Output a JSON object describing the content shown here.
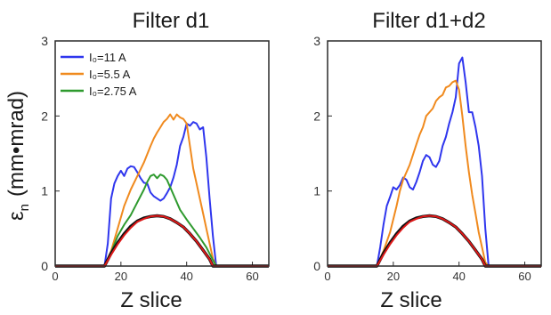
{
  "shared_ylabel": {
    "symbol": "ε",
    "sub": "n",
    "units": "(mm•mrad)"
  },
  "chart_data": [
    {
      "type": "line",
      "title": "Filter d1",
      "xlabel": "Z slice",
      "ylabel": "",
      "xlim": [
        0,
        65
      ],
      "ylim": [
        0,
        3
      ],
      "xticks": [
        0,
        20,
        40,
        60
      ],
      "yticks": [
        0,
        1,
        2,
        3
      ],
      "grid": false,
      "legend": "top-left",
      "series": [
        {
          "name": "I₀=11 A",
          "color": "#2f36ee",
          "points": [
            [
              0,
              0
            ],
            [
              15,
              0
            ],
            [
              16,
              0.3
            ],
            [
              17,
              0.9
            ],
            [
              18,
              1.1
            ],
            [
              19,
              1.2
            ],
            [
              20,
              1.27
            ],
            [
              21,
              1.2
            ],
            [
              22,
              1.3
            ],
            [
              23,
              1.33
            ],
            [
              24,
              1.32
            ],
            [
              25,
              1.25
            ],
            [
              26,
              1.17
            ],
            [
              27,
              1.11
            ],
            [
              28,
              1.1
            ],
            [
              29,
              0.98
            ],
            [
              30,
              0.93
            ],
            [
              31,
              0.9
            ],
            [
              32,
              0.87
            ],
            [
              33,
              0.9
            ],
            [
              34,
              0.97
            ],
            [
              35,
              1.05
            ],
            [
              36,
              1.18
            ],
            [
              37,
              1.35
            ],
            [
              38,
              1.6
            ],
            [
              39,
              1.72
            ],
            [
              40,
              1.9
            ],
            [
              41,
              1.87
            ],
            [
              42,
              1.92
            ],
            [
              43,
              1.9
            ],
            [
              44,
              1.82
            ],
            [
              45,
              1.85
            ],
            [
              46,
              1.45
            ],
            [
              47,
              0.9
            ],
            [
              48,
              0.4
            ],
            [
              49,
              0
            ],
            [
              65,
              0
            ]
          ]
        },
        {
          "name": "I₀=5.5 A",
          "color": "#f08a1e",
          "points": [
            [
              0,
              0
            ],
            [
              15,
              0
            ],
            [
              17,
              0.2
            ],
            [
              19,
              0.5
            ],
            [
              21,
              0.8
            ],
            [
              23,
              1.02
            ],
            [
              25,
              1.2
            ],
            [
              27,
              1.38
            ],
            [
              29,
              1.6
            ],
            [
              30,
              1.7
            ],
            [
              31,
              1.78
            ],
            [
              32,
              1.85
            ],
            [
              33,
              1.92
            ],
            [
              34,
              1.96
            ],
            [
              35,
              2.02
            ],
            [
              36,
              1.95
            ],
            [
              37,
              2.02
            ],
            [
              38,
              1.98
            ],
            [
              39,
              1.96
            ],
            [
              40,
              1.9
            ],
            [
              41,
              1.6
            ],
            [
              42,
              1.3
            ],
            [
              43,
              1.1
            ],
            [
              44,
              0.9
            ],
            [
              45,
              0.7
            ],
            [
              46,
              0.5
            ],
            [
              47,
              0.3
            ],
            [
              48,
              0.1
            ],
            [
              49,
              0
            ],
            [
              65,
              0
            ]
          ]
        },
        {
          "name": "I₀=2.75 A",
          "color": "#2e9a2e",
          "points": [
            [
              0,
              0
            ],
            [
              15,
              0
            ],
            [
              17,
              0.18
            ],
            [
              19,
              0.4
            ],
            [
              21,
              0.55
            ],
            [
              23,
              0.68
            ],
            [
              25,
              0.85
            ],
            [
              27,
              1.02
            ],
            [
              28,
              1.12
            ],
            [
              29,
              1.2
            ],
            [
              30,
              1.22
            ],
            [
              31,
              1.17
            ],
            [
              32,
              1.22
            ],
            [
              33,
              1.2
            ],
            [
              34,
              1.15
            ],
            [
              35,
              1.05
            ],
            [
              36,
              0.95
            ],
            [
              38,
              0.75
            ],
            [
              40,
              0.62
            ],
            [
              42,
              0.5
            ],
            [
              44,
              0.38
            ],
            [
              46,
              0.25
            ],
            [
              48,
              0.08
            ],
            [
              49,
              0
            ],
            [
              65,
              0
            ]
          ]
        },
        {
          "name": "",
          "color": "#111111",
          "points": [
            [
              0,
              0
            ],
            [
              15,
              0
            ],
            [
              17,
              0.17
            ],
            [
              19,
              0.31
            ],
            [
              21,
              0.43
            ],
            [
              23,
              0.53
            ],
            [
              25,
              0.6
            ],
            [
              27,
              0.64
            ],
            [
              29,
              0.66
            ],
            [
              31,
              0.67
            ],
            [
              33,
              0.66
            ],
            [
              35,
              0.63
            ],
            [
              37,
              0.58
            ],
            [
              39,
              0.52
            ],
            [
              41,
              0.43
            ],
            [
              43,
              0.33
            ],
            [
              45,
              0.21
            ],
            [
              47,
              0.09
            ],
            [
              48,
              0
            ],
            [
              65,
              0
            ]
          ]
        },
        {
          "name": "",
          "color": "#e01818",
          "points": [
            [
              0,
              0
            ],
            [
              15,
              0
            ],
            [
              17,
              0.15
            ],
            [
              19,
              0.29
            ],
            [
              21,
              0.41
            ],
            [
              23,
              0.51
            ],
            [
              25,
              0.59
            ],
            [
              27,
              0.63
            ],
            [
              29,
              0.66
            ],
            [
              31,
              0.67
            ],
            [
              33,
              0.66
            ],
            [
              35,
              0.63
            ],
            [
              37,
              0.58
            ],
            [
              39,
              0.52
            ],
            [
              41,
              0.43
            ],
            [
              43,
              0.33
            ],
            [
              45,
              0.21
            ],
            [
              47,
              0.09
            ],
            [
              48,
              0
            ],
            [
              65,
              0
            ]
          ]
        }
      ]
    },
    {
      "type": "line",
      "title": "Filter d1+d2",
      "xlabel": "Z slice",
      "ylabel": "",
      "xlim": [
        0,
        65
      ],
      "ylim": [
        0,
        3
      ],
      "xticks": [
        0,
        20,
        40,
        60
      ],
      "yticks": [
        0,
        1,
        2,
        3
      ],
      "grid": false,
      "legend": "none",
      "series": [
        {
          "name": "",
          "color": "#2f36ee",
          "points": [
            [
              0,
              0
            ],
            [
              15,
              0
            ],
            [
              16,
              0.25
            ],
            [
              17,
              0.55
            ],
            [
              18,
              0.8
            ],
            [
              19,
              0.92
            ],
            [
              20,
              1.05
            ],
            [
              21,
              1.02
            ],
            [
              22,
              1.08
            ],
            [
              23,
              1.18
            ],
            [
              24,
              1.15
            ],
            [
              25,
              1.05
            ],
            [
              26,
              1.02
            ],
            [
              27,
              1.12
            ],
            [
              28,
              1.25
            ],
            [
              29,
              1.4
            ],
            [
              30,
              1.48
            ],
            [
              31,
              1.45
            ],
            [
              32,
              1.35
            ],
            [
              33,
              1.32
            ],
            [
              34,
              1.4
            ],
            [
              35,
              1.6
            ],
            [
              36,
              1.72
            ],
            [
              37,
              1.9
            ],
            [
              38,
              2.05
            ],
            [
              39,
              2.25
            ],
            [
              40,
              2.7
            ],
            [
              41,
              2.78
            ],
            [
              42,
              2.45
            ],
            [
              43,
              2.05
            ],
            [
              44,
              2.05
            ],
            [
              45,
              1.85
            ],
            [
              46,
              1.6
            ],
            [
              47,
              1.2
            ],
            [
              48,
              0.5
            ],
            [
              49,
              0
            ],
            [
              65,
              0
            ]
          ]
        },
        {
          "name": "",
          "color": "#f08a1e",
          "points": [
            [
              0,
              0
            ],
            [
              15,
              0
            ],
            [
              17,
              0.2
            ],
            [
              19,
              0.45
            ],
            [
              21,
              0.8
            ],
            [
              22,
              1.0
            ],
            [
              23,
              1.15
            ],
            [
              25,
              1.35
            ],
            [
              27,
              1.62
            ],
            [
              28,
              1.75
            ],
            [
              29,
              1.85
            ],
            [
              30,
              2.0
            ],
            [
              31,
              2.05
            ],
            [
              32,
              2.1
            ],
            [
              33,
              2.2
            ],
            [
              34,
              2.25
            ],
            [
              35,
              2.28
            ],
            [
              36,
              2.38
            ],
            [
              37,
              2.4
            ],
            [
              38,
              2.45
            ],
            [
              39,
              2.47
            ],
            [
              40,
              2.35
            ],
            [
              41,
              2.0
            ],
            [
              42,
              1.6
            ],
            [
              43,
              1.25
            ],
            [
              44,
              0.95
            ],
            [
              45,
              0.7
            ],
            [
              46,
              0.45
            ],
            [
              47,
              0.25
            ],
            [
              48,
              0.05
            ],
            [
              49,
              0
            ],
            [
              65,
              0
            ]
          ]
        },
        {
          "name": "",
          "color": "#111111",
          "points": [
            [
              0,
              0
            ],
            [
              15,
              0
            ],
            [
              17,
              0.17
            ],
            [
              19,
              0.31
            ],
            [
              21,
              0.43
            ],
            [
              23,
              0.53
            ],
            [
              25,
              0.6
            ],
            [
              27,
              0.64
            ],
            [
              29,
              0.66
            ],
            [
              31,
              0.67
            ],
            [
              33,
              0.66
            ],
            [
              35,
              0.63
            ],
            [
              37,
              0.58
            ],
            [
              39,
              0.52
            ],
            [
              41,
              0.43
            ],
            [
              43,
              0.33
            ],
            [
              45,
              0.21
            ],
            [
              47,
              0.09
            ],
            [
              48,
              0
            ],
            [
              65,
              0
            ]
          ]
        },
        {
          "name": "",
          "color": "#e01818",
          "points": [
            [
              0,
              0
            ],
            [
              15,
              0
            ],
            [
              17,
              0.15
            ],
            [
              19,
              0.29
            ],
            [
              21,
              0.41
            ],
            [
              23,
              0.51
            ],
            [
              25,
              0.59
            ],
            [
              27,
              0.63
            ],
            [
              29,
              0.66
            ],
            [
              31,
              0.67
            ],
            [
              33,
              0.66
            ],
            [
              35,
              0.63
            ],
            [
              37,
              0.58
            ],
            [
              39,
              0.52
            ],
            [
              41,
              0.43
            ],
            [
              43,
              0.33
            ],
            [
              45,
              0.21
            ],
            [
              47,
              0.09
            ],
            [
              48,
              0
            ],
            [
              65,
              0
            ]
          ]
        }
      ]
    }
  ]
}
